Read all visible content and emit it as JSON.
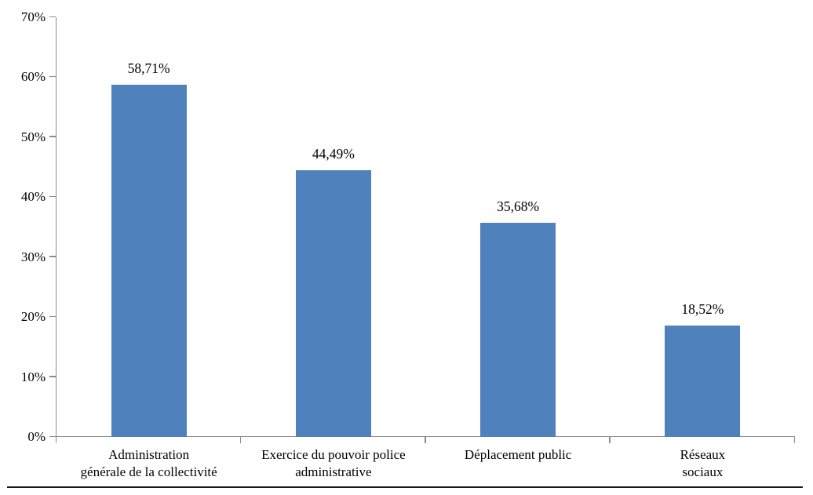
{
  "figure": {
    "background": "#ffffff",
    "bottom_rule_color": "#1a1a1a"
  },
  "chart_data": {
    "type": "bar",
    "title": "",
    "xlabel": "",
    "ylabel": "",
    "categories": [
      "Administration générale de la collectivité",
      "Exercice du pouvoir police administrative",
      "Déplacement public",
      "Réseaux sociaux"
    ],
    "category_label_lines": [
      [
        "Administration",
        "générale de la collectivité"
      ],
      [
        "Exercice du pouvoir police",
        "administrative"
      ],
      [
        "Déplacement public"
      ],
      [
        "Réseaux",
        "sociaux"
      ]
    ],
    "values": [
      58.71,
      44.49,
      35.68,
      18.52
    ],
    "value_labels": [
      "58,71%",
      "44,49%",
      "35,68%",
      "18,52%"
    ],
    "ylim": [
      0,
      70
    ],
    "ytick_step": 10,
    "ytick_labels": [
      "0%",
      "10%",
      "20%",
      "30%",
      "40%",
      "50%",
      "60%",
      "70%"
    ],
    "grid": false,
    "legend": false,
    "bar_color": "#4F81BD",
    "axis_color": "#8B8B8B",
    "label_color": "#000000"
  }
}
